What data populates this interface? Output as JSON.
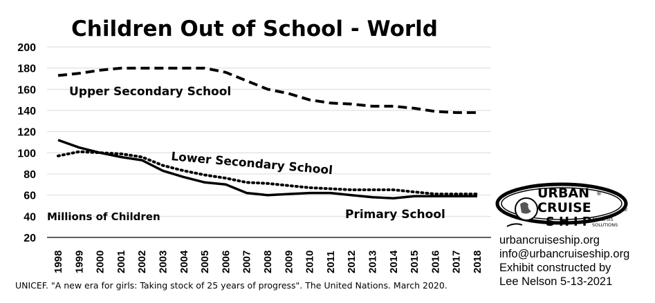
{
  "chart_data": {
    "type": "line",
    "title": "Children Out of School - World",
    "ylabel": "Millions of Children",
    "xlabel": "",
    "ylim": [
      20,
      200
    ],
    "yticks": [
      20,
      40,
      60,
      80,
      100,
      120,
      140,
      160,
      180,
      200
    ],
    "grid": true,
    "categories": [
      "1998",
      "1999",
      "2000",
      "2001",
      "2002",
      "2003",
      "2004",
      "2005",
      "2006",
      "2007",
      "2008",
      "2009",
      "2010",
      "2011",
      "2012",
      "2013",
      "2014",
      "2015",
      "2016",
      "2017",
      "2018"
    ],
    "series": [
      {
        "name": "Upper Secondary School",
        "style": "dashed",
        "values": [
          173,
          175,
          178,
          180,
          180,
          180,
          180,
          180,
          176,
          168,
          160,
          156,
          150,
          147,
          146,
          144,
          144,
          142,
          139,
          138,
          138
        ]
      },
      {
        "name": "Lower Secondary School",
        "style": "dotted",
        "values": [
          97,
          101,
          100,
          99,
          96,
          88,
          83,
          79,
          76,
          72,
          71,
          69,
          67,
          66,
          65,
          65,
          65,
          63,
          61,
          61,
          61
        ]
      },
      {
        "name": "Primary School",
        "style": "solid",
        "values": [
          112,
          105,
          100,
          96,
          93,
          83,
          77,
          72,
          70,
          62,
          60,
          61,
          62,
          62,
          60,
          58,
          57,
          59,
          59,
          59,
          59
        ]
      }
    ]
  },
  "source_note": "UNICEF. \"A new era for girls: Taking stock of 25 years of progress\". The United Nations. March 2020.",
  "logo": {
    "line1": "URBAN",
    "line2": "CRUISE",
    "line3": "SHIP",
    "sub1": "ANALYSIS",
    "sub2": "SOLUTIONS",
    "reg": "®"
  },
  "contact": {
    "website": "urbancruiseship.org",
    "email": "info@urbancruiseship.org",
    "credit1": "Exhibit constructed by",
    "credit2": "Lee Nelson 5-13-2021"
  },
  "colors": {
    "line": "#000000",
    "grid": "#d9d9d9",
    "background": "#ffffff"
  }
}
